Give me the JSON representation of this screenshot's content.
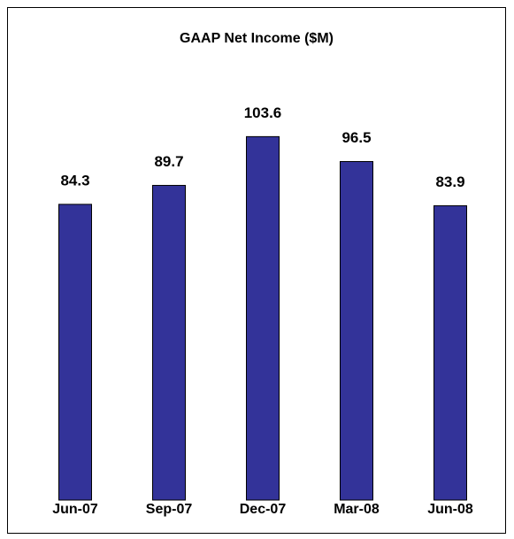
{
  "chart_data": {
    "type": "bar",
    "title": "GAAP Net Income ($M)",
    "categories": [
      "Jun-07",
      "Sep-07",
      "Dec-07",
      "Mar-08",
      "Jun-08"
    ],
    "values": [
      84.3,
      89.7,
      103.6,
      96.5,
      83.9
    ],
    "color": "#333399",
    "ylim": [
      0,
      110
    ]
  }
}
